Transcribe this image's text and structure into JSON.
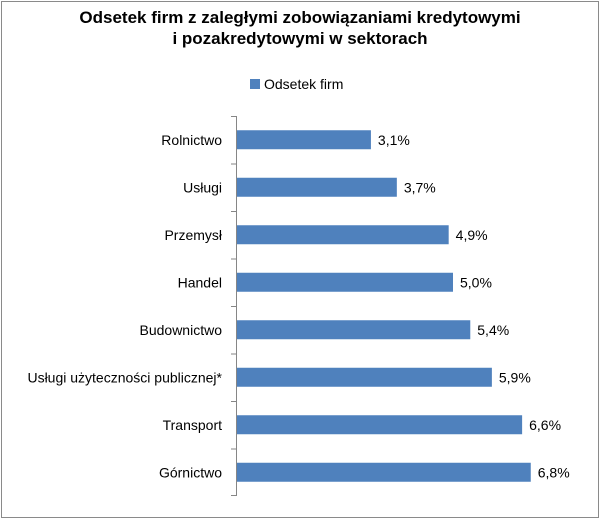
{
  "chart_data": {
    "type": "bar",
    "orientation": "horizontal",
    "title_lines": [
      "Odsetek firm z zaległymi zobowiązaniami kredytowymi",
      "i pozakredytowymi w sektorach"
    ],
    "legend": {
      "label": "Odsetek firm",
      "placement": "top"
    },
    "categories": [
      "Rolnictwo",
      "Usługi",
      "Przemysł",
      "Handel",
      "Budownictwo",
      "Usługi użyteczności publicznej*",
      "Transport",
      "Górnictwo"
    ],
    "values": [
      3.1,
      3.7,
      4.9,
      5.0,
      5.4,
      5.9,
      6.6,
      6.8
    ],
    "value_labels": [
      "3,1%",
      "3,7%",
      "4,9%",
      "5,0%",
      "5,4%",
      "5,9%",
      "6,6%",
      "6,8%"
    ],
    "xlim": [
      0,
      7.2
    ],
    "grid": false,
    "colors": {
      "bar": "#4f81bd",
      "axis": "#868686"
    }
  }
}
